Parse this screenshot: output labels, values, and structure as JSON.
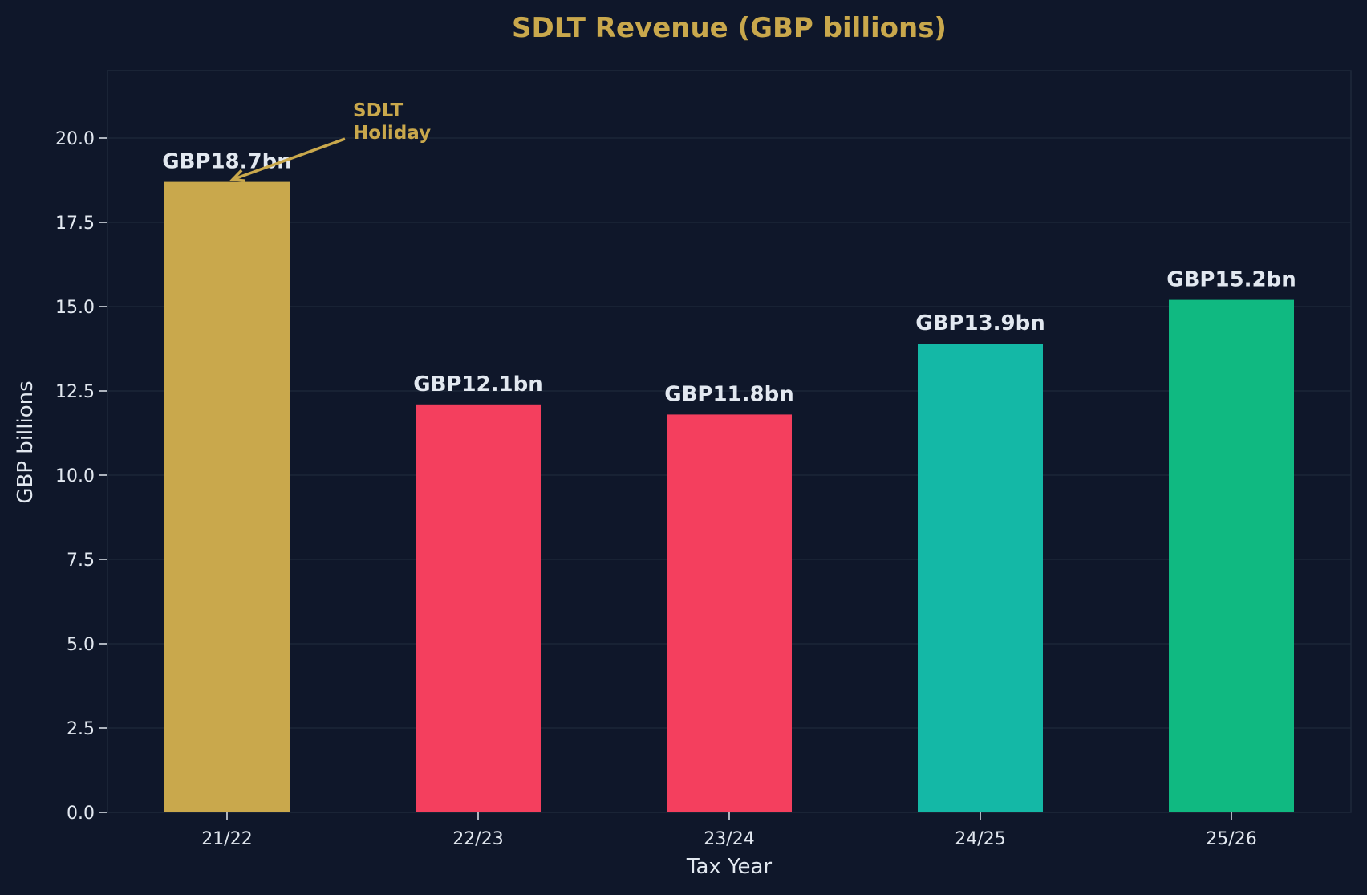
{
  "chart_data": {
    "type": "bar",
    "title": "SDLT Revenue (GBP billions)",
    "xlabel": "Tax Year",
    "ylabel": "GBP billions",
    "categories": [
      "21/22",
      "22/23",
      "23/24",
      "24/25",
      "25/26"
    ],
    "values": [
      18.7,
      12.1,
      11.8,
      13.9,
      15.2
    ],
    "data_labels": [
      "GBP18.7bn",
      "GBP12.1bn",
      "GBP11.8bn",
      "GBP13.9bn",
      "GBP15.2bn"
    ],
    "bar_colors": [
      "#c9a84c",
      "#f43f5e",
      "#f43f5e",
      "#14b8a6",
      "#10b981"
    ],
    "ylim": [
      0,
      22
    ],
    "yticks": [
      0,
      2.5,
      5,
      7.5,
      10,
      12.5,
      15,
      17.5,
      20
    ],
    "ytick_labels": [
      "0.0",
      "2.5",
      "5.0",
      "7.5",
      "10.0",
      "12.5",
      "15.0",
      "17.5",
      "20.0"
    ],
    "grid": true,
    "legend": "none",
    "annotations": [
      {
        "text_lines": [
          "SDLT",
          "Holiday"
        ],
        "target_category": "21/22",
        "target_value": 18.7,
        "color": "#c9a84c"
      }
    ]
  },
  "theme": {
    "background": "#0f172a",
    "plot_border": "#1e293b",
    "grid_color": "#1e293b",
    "text_color": "#e2e8f0",
    "title_color": "#c9a84c"
  }
}
